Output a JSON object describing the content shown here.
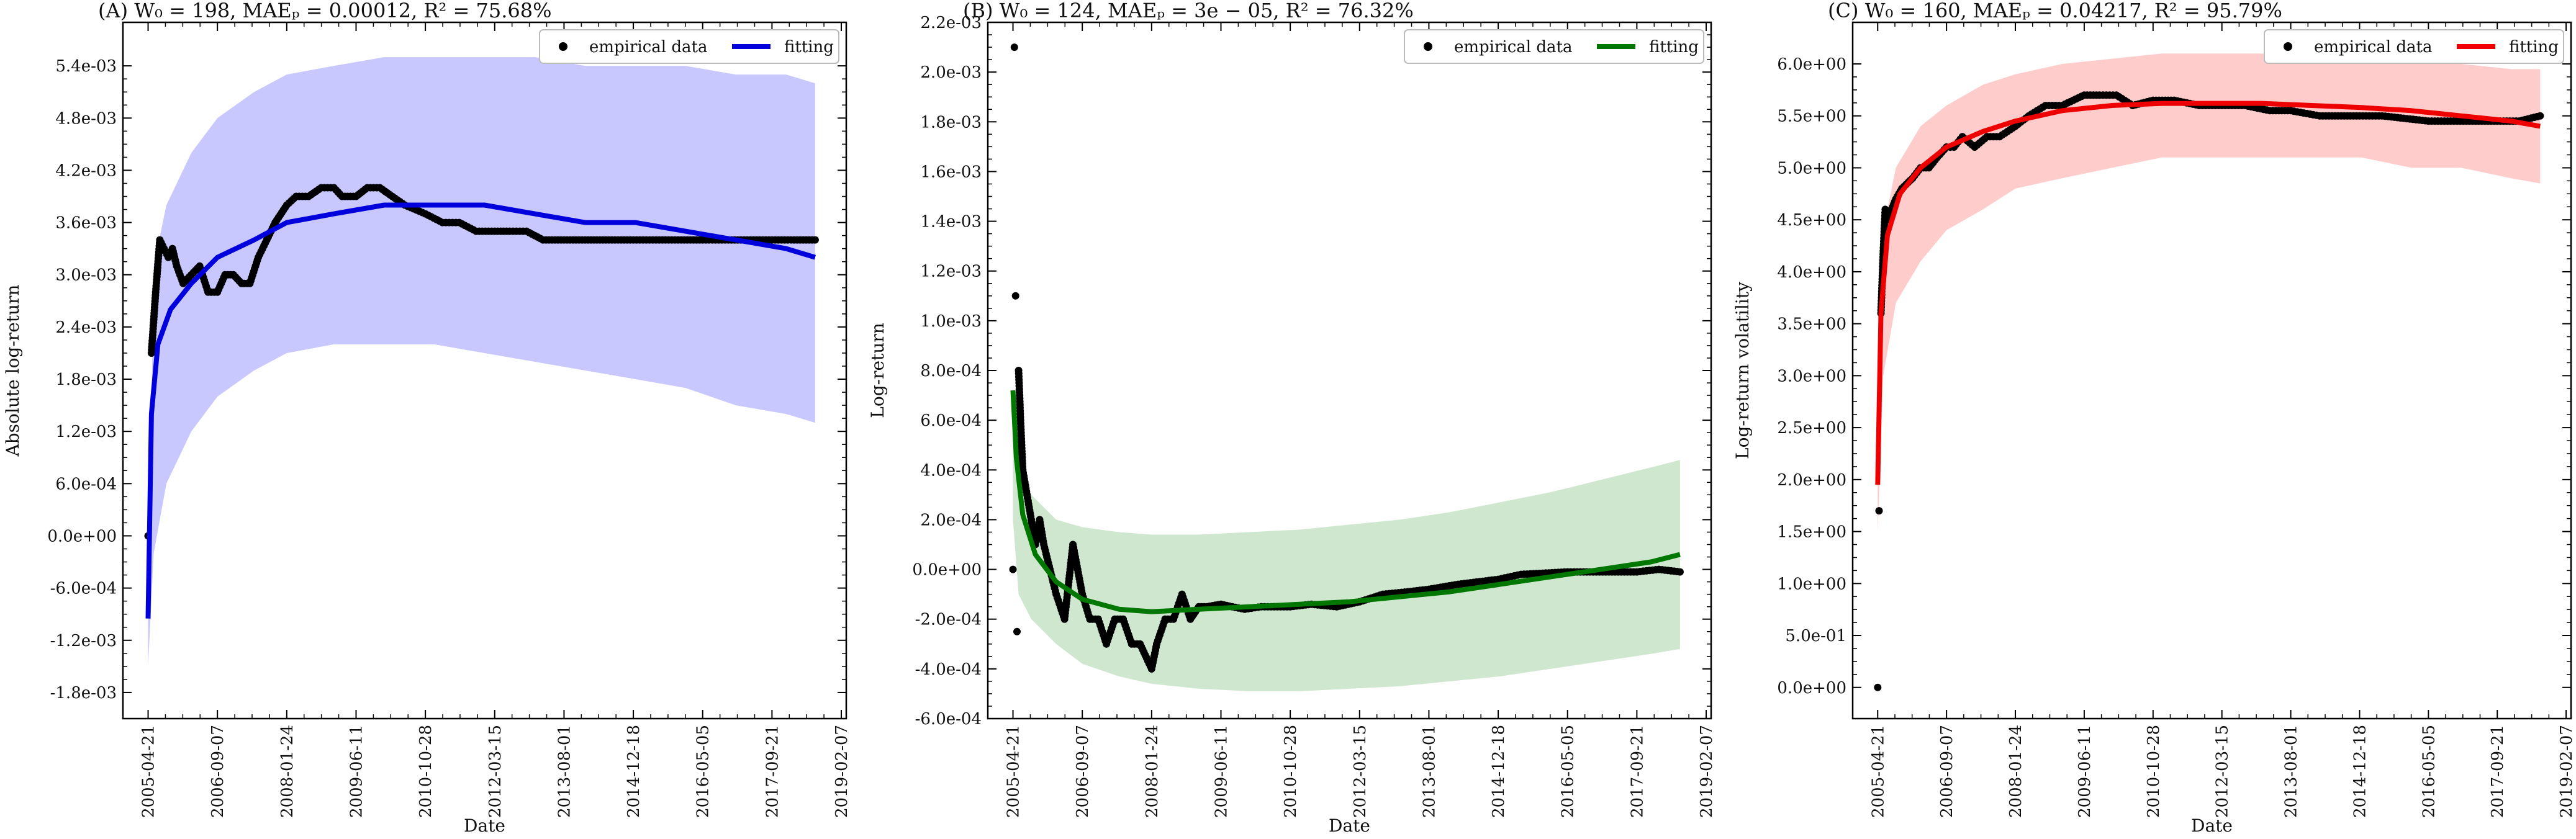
{
  "chart_data": [
    {
      "panel": "A",
      "type": "scatter",
      "title": "(A) W₀ = 198, MAEₚ = 0.00012, R² = 75.68%",
      "xlabel": "Date",
      "ylabel": "Absolute log-return",
      "x_range": [
        "2004-10-20",
        "2019-03-15"
      ],
      "ylim": [
        -0.0021,
        0.0059
      ],
      "xticks": [
        "2005-04-21",
        "2006-09-07",
        "2008-01-24",
        "2009-06-11",
        "2010-10-28",
        "2012-03-15",
        "2013-08-01",
        "2014-12-18",
        "2016-05-05",
        "2017-09-21",
        "2019-02-07"
      ],
      "yticks": [
        -0.0018,
        -0.0012,
        -0.0006,
        0.0,
        0.0006,
        0.0012,
        0.0018,
        0.0024,
        0.003,
        0.0036,
        0.0042,
        0.0048,
        0.0054
      ],
      "ytick_labels": [
        "-1.8e-03",
        "-1.2e-03",
        "-6.0e-04",
        "0.0e+00",
        "6.0e-04",
        "1.2e-03",
        "1.8e-03",
        "2.4e-03",
        "3.0e-03",
        "3.6e-03",
        "4.2e-03",
        "4.8e-03",
        "5.4e-03"
      ],
      "legend": [
        "empirical data",
        "fitting"
      ],
      "legend_position": "top-right",
      "fit_color": "#0000dd",
      "band_color": "#c8c8ff",
      "series": [
        {
          "name": "empirical data",
          "x": [
            "2005-04-21",
            "2005-05-15",
            "2005-06-15",
            "2005-07-15",
            "2005-08-15",
            "2005-09-15",
            "2005-10-15",
            "2005-11-15",
            "2006-01-01",
            "2006-03-01",
            "2006-05-01",
            "2006-07-01",
            "2006-09-07",
            "2006-11-01",
            "2007-01-01",
            "2007-03-01",
            "2007-05-01",
            "2007-07-01",
            "2007-09-01",
            "2007-11-01",
            "2008-01-24",
            "2008-04-01",
            "2008-07-01",
            "2008-10-01",
            "2009-01-01",
            "2009-03-01",
            "2009-06-11",
            "2009-09-01",
            "2009-12-01",
            "2010-03-01",
            "2010-06-01",
            "2010-10-28",
            "2011-03-01",
            "2011-07-01",
            "2011-11-01",
            "2012-03-15",
            "2012-07-01",
            "2012-11-01",
            "2013-03-01",
            "2013-08-01",
            "2014-01-01",
            "2014-06-01",
            "2014-12-18",
            "2015-06-01",
            "2015-12-01",
            "2016-05-05",
            "2016-12-01",
            "2017-06-01",
            "2017-09-21",
            "2018-03-01",
            "2018-08-01"
          ],
          "values": [
            0.0,
            0.0021,
            0.0028,
            0.0034,
            0.0033,
            0.0032,
            0.0033,
            0.0031,
            0.0029,
            0.003,
            0.0031,
            0.0028,
            0.0028,
            0.003,
            0.003,
            0.0029,
            0.0029,
            0.0032,
            0.0034,
            0.0036,
            0.0038,
            0.0039,
            0.0039,
            0.004,
            0.004,
            0.0039,
            0.0039,
            0.004,
            0.004,
            0.0039,
            0.0038,
            0.0037,
            0.0036,
            0.0036,
            0.0035,
            0.0035,
            0.0035,
            0.0035,
            0.0034,
            0.0034,
            0.0034,
            0.0034,
            0.0034,
            0.0034,
            0.0034,
            0.0034,
            0.0034,
            0.0034,
            0.0034,
            0.0034,
            0.0034
          ]
        },
        {
          "name": "fitting",
          "x": [
            "2005-04-21",
            "2005-05-15",
            "2005-07-01",
            "2005-10-01",
            "2006-03-01",
            "2006-09-07",
            "2007-06-01",
            "2008-01-24",
            "2009-01-01",
            "2010-01-01",
            "2011-01-01",
            "2012-01-01",
            "2013-01-01",
            "2014-01-01",
            "2015-01-01",
            "2016-01-01",
            "2017-01-01",
            "2018-01-01",
            "2018-08-01"
          ],
          "values": [
            -0.00095,
            0.0014,
            0.0022,
            0.0026,
            0.0029,
            0.0032,
            0.0034,
            0.0036,
            0.0037,
            0.0038,
            0.0038,
            0.0038,
            0.0037,
            0.0036,
            0.0036,
            0.0035,
            0.0034,
            0.0033,
            0.0032
          ]
        },
        {
          "name": "band_upper",
          "x": [
            "2005-04-21",
            "2005-06-01",
            "2005-09-01",
            "2006-03-01",
            "2006-09-07",
            "2007-06-01",
            "2008-01-24",
            "2009-01-01",
            "2010-01-01",
            "2011-01-01",
            "2012-01-01",
            "2013-01-01",
            "2014-01-01",
            "2015-01-01",
            "2016-01-01",
            "2017-01-01",
            "2018-01-01",
            "2018-08-01"
          ],
          "values": [
            -0.001,
            0.0031,
            0.0038,
            0.0044,
            0.0048,
            0.0051,
            0.0053,
            0.0054,
            0.0055,
            0.0055,
            0.0055,
            0.0055,
            0.0054,
            0.0054,
            0.0054,
            0.0053,
            0.0053,
            0.0052
          ]
        },
        {
          "name": "band_lower",
          "x": [
            "2005-04-21",
            "2005-06-01",
            "2005-09-01",
            "2006-03-01",
            "2006-09-07",
            "2007-06-01",
            "2008-01-24",
            "2009-01-01",
            "2010-01-01",
            "2011-01-01",
            "2012-01-01",
            "2013-01-01",
            "2014-01-01",
            "2015-01-01",
            "2016-01-01",
            "2017-01-01",
            "2018-01-01",
            "2018-08-01"
          ],
          "values": [
            -0.0015,
            -0.0002,
            0.0006,
            0.0012,
            0.0016,
            0.0019,
            0.0021,
            0.0022,
            0.0022,
            0.0022,
            0.0021,
            0.002,
            0.0019,
            0.0018,
            0.0017,
            0.0015,
            0.0014,
            0.0013
          ]
        }
      ]
    },
    {
      "panel": "B",
      "type": "scatter",
      "title": "(B) W₀ = 124, MAEₚ = 3e − 05, R² = 76.32%",
      "xlabel": "Date",
      "ylabel": "Log-return",
      "x_range": [
        "2004-10-20",
        "2019-03-15"
      ],
      "ylim": [
        -0.0006,
        0.0022
      ],
      "xticks": [
        "2005-04-21",
        "2006-09-07",
        "2008-01-24",
        "2009-06-11",
        "2010-10-28",
        "2012-03-15",
        "2013-08-01",
        "2014-12-18",
        "2016-05-05",
        "2017-09-21",
        "2019-02-07"
      ],
      "yticks": [
        -0.0006,
        -0.0004,
        -0.0002,
        0.0,
        0.0002,
        0.0004,
        0.0006,
        0.0008,
        0.001,
        0.0012,
        0.0014,
        0.0016,
        0.0018,
        0.002,
        0.0022
      ],
      "ytick_labels": [
        "-6.0e-04",
        "-4.0e-04",
        "-2.0e-04",
        "0.0e+00",
        "2.0e-04",
        "4.0e-04",
        "6.0e-04",
        "8.0e-04",
        "1.0e-03",
        "1.2e-03",
        "1.4e-03",
        "1.6e-03",
        "1.8e-03",
        "2.0e-03",
        "2.2e-03"
      ],
      "legend": [
        "empirical data",
        "fitting"
      ],
      "legend_position": "top-right",
      "fit_color": "#007700",
      "band_color": "#cfe6cf",
      "series": [
        {
          "name": "empirical data",
          "x": [
            "2005-04-21",
            "2005-05-01",
            "2005-05-10",
            "2005-05-20",
            "2005-06-01",
            "2005-06-15",
            "2005-07-01",
            "2005-08-01",
            "2005-09-01",
            "2005-10-01",
            "2005-11-01",
            "2005-12-01",
            "2006-01-15",
            "2006-03-01",
            "2006-05-01",
            "2006-07-01",
            "2006-09-07",
            "2006-11-01",
            "2007-01-01",
            "2007-03-01",
            "2007-05-01",
            "2007-07-01",
            "2007-09-01",
            "2007-11-01",
            "2008-01-24",
            "2008-03-01",
            "2008-05-01",
            "2008-07-01",
            "2008-09-01",
            "2008-11-01",
            "2009-01-01",
            "2009-03-01",
            "2009-06-11",
            "2009-09-01",
            "2009-12-01",
            "2010-04-01",
            "2010-10-28",
            "2011-04-01",
            "2011-10-01",
            "2012-03-15",
            "2012-09-01",
            "2013-03-01",
            "2013-08-01",
            "2014-03-01",
            "2014-12-18",
            "2015-06-01",
            "2016-05-05",
            "2016-12-01",
            "2017-09-21",
            "2018-03-01",
            "2018-08-01"
          ],
          "values": [
            0.0,
            0.0021,
            0.0011,
            -0.00025,
            0.0008,
            0.0006,
            0.0004,
            0.0003,
            0.0002,
            0.0001,
            0.0002,
            0.0001,
            0.0,
            -0.0001,
            -0.0002,
            0.0001,
            -0.0001,
            -0.0002,
            -0.0002,
            -0.0003,
            -0.0002,
            -0.0002,
            -0.0003,
            -0.0003,
            -0.0004,
            -0.0003,
            -0.0002,
            -0.0002,
            -0.0001,
            -0.0002,
            -0.00015,
            -0.00015,
            -0.00014,
            -0.00015,
            -0.00016,
            -0.00015,
            -0.00015,
            -0.00014,
            -0.00015,
            -0.00013,
            -0.0001,
            -9e-05,
            -8e-05,
            -6e-05,
            -4e-05,
            -2e-05,
            -1e-05,
            -1e-05,
            -1e-05,
            0.0,
            -1e-05
          ]
        },
        {
          "name": "fitting",
          "x": [
            "2005-04-21",
            "2005-05-15",
            "2005-07-01",
            "2005-10-01",
            "2006-03-01",
            "2006-09-07",
            "2007-06-01",
            "2008-01-24",
            "2009-01-01",
            "2010-01-01",
            "2011-01-01",
            "2012-01-01",
            "2013-01-01",
            "2014-01-01",
            "2015-01-01",
            "2016-01-01",
            "2017-01-01",
            "2018-01-01",
            "2018-08-01"
          ],
          "values": [
            0.00072,
            0.00045,
            0.00022,
            6e-05,
            -5e-05,
            -0.00012,
            -0.00016,
            -0.00017,
            -0.00016,
            -0.00015,
            -0.00014,
            -0.00013,
            -0.00011,
            -9e-05,
            -6e-05,
            -3e-05,
            0.0,
            3e-05,
            6e-05
          ]
        },
        {
          "name": "band_upper",
          "x": [
            "2005-04-21",
            "2005-06-01",
            "2005-09-01",
            "2006-03-01",
            "2006-09-07",
            "2007-06-01",
            "2008-01-24",
            "2009-01-01",
            "2010-01-01",
            "2011-01-01",
            "2012-01-01",
            "2013-01-01",
            "2014-01-01",
            "2015-01-01",
            "2016-01-01",
            "2017-01-01",
            "2018-01-01",
            "2018-08-01"
          ],
          "values": [
            0.0006,
            0.0004,
            0.0003,
            0.0002,
            0.00017,
            0.00015,
            0.00014,
            0.00014,
            0.00015,
            0.00016,
            0.00018,
            0.0002,
            0.00023,
            0.00027,
            0.00031,
            0.00036,
            0.00041,
            0.00044
          ]
        },
        {
          "name": "band_lower",
          "x": [
            "2005-04-21",
            "2005-06-01",
            "2005-09-01",
            "2006-03-01",
            "2006-09-07",
            "2007-06-01",
            "2008-01-24",
            "2009-01-01",
            "2010-01-01",
            "2011-01-01",
            "2012-01-01",
            "2013-01-01",
            "2014-01-01",
            "2015-01-01",
            "2016-01-01",
            "2017-01-01",
            "2018-01-01",
            "2018-08-01"
          ],
          "values": [
            0.0002,
            -0.0001,
            -0.0002,
            -0.0003,
            -0.00038,
            -0.00043,
            -0.00046,
            -0.00048,
            -0.00049,
            -0.00049,
            -0.00048,
            -0.00047,
            -0.00045,
            -0.00043,
            -0.0004,
            -0.00037,
            -0.00034,
            -0.00032
          ]
        }
      ]
    },
    {
      "panel": "C",
      "type": "scatter",
      "title": "(C) W₀ = 160, MAEₚ = 0.04217, R² = 95.79%",
      "xlabel": "Date",
      "ylabel": "Log-return volatility",
      "x_range": [
        "2004-10-20",
        "2019-03-15"
      ],
      "ylim": [
        -0.3,
        6.4
      ],
      "xticks": [
        "2005-04-21",
        "2006-09-07",
        "2008-01-24",
        "2009-06-11",
        "2010-10-28",
        "2012-03-15",
        "2013-08-01",
        "2014-12-18",
        "2016-05-05",
        "2017-09-21",
        "2019-02-07"
      ],
      "yticks": [
        0.0,
        0.5,
        1.0,
        1.5,
        2.0,
        2.5,
        3.0,
        3.5,
        4.0,
        4.5,
        5.0,
        5.5,
        6.0
      ],
      "ytick_labels": [
        "0.0e+00",
        "5.0e-01",
        "1.0e+00",
        "1.5e+00",
        "2.0e+00",
        "2.5e+00",
        "3.0e+00",
        "3.5e+00",
        "4.0e+00",
        "4.5e+00",
        "5.0e+00",
        "5.5e+00",
        "6.0e+00"
      ],
      "legend": [
        "empirical data",
        "fitting"
      ],
      "legend_position": "top-right",
      "fit_color": "#ee0000",
      "band_color": "#ffcccc",
      "series": [
        {
          "name": "empirical data",
          "x": [
            "2005-04-21",
            "2005-05-01",
            "2005-05-15",
            "2005-06-01",
            "2005-06-15",
            "2005-07-01",
            "2005-08-01",
            "2005-09-01",
            "2005-10-15",
            "2006-01-01",
            "2006-03-01",
            "2006-05-01",
            "2006-07-01",
            "2006-09-07",
            "2006-11-01",
            "2007-01-01",
            "2007-04-01",
            "2007-07-01",
            "2007-10-01",
            "2008-01-24",
            "2008-05-01",
            "2008-09-01",
            "2009-01-01",
            "2009-06-11",
            "2009-10-01",
            "2010-02-01",
            "2010-06-01",
            "2010-10-28",
            "2011-04-01",
            "2011-10-01",
            "2012-03-15",
            "2012-09-01",
            "2013-03-01",
            "2013-08-01",
            "2014-03-01",
            "2014-12-18",
            "2015-06-01",
            "2016-05-05",
            "2016-12-01",
            "2017-09-21",
            "2018-03-01",
            "2018-08-01"
          ],
          "values": [
            0.0,
            1.7,
            3.6,
            4.2,
            4.6,
            4.5,
            4.6,
            4.7,
            4.8,
            4.9,
            5.0,
            5.0,
            5.1,
            5.2,
            5.2,
            5.3,
            5.2,
            5.3,
            5.3,
            5.4,
            5.5,
            5.6,
            5.6,
            5.7,
            5.7,
            5.7,
            5.6,
            5.65,
            5.65,
            5.6,
            5.6,
            5.6,
            5.55,
            5.55,
            5.5,
            5.5,
            5.5,
            5.45,
            5.45,
            5.45,
            5.45,
            5.5
          ]
        },
        {
          "name": "fitting",
          "x": [
            "2005-04-21",
            "2005-05-15",
            "2005-07-01",
            "2005-10-01",
            "2006-03-01",
            "2006-09-07",
            "2007-06-01",
            "2008-01-24",
            "2009-01-01",
            "2010-01-01",
            "2011-01-01",
            "2012-01-01",
            "2013-01-01",
            "2014-01-01",
            "2015-01-01",
            "2016-01-01",
            "2017-01-01",
            "2018-01-01",
            "2018-08-01"
          ],
          "values": [
            1.95,
            3.6,
            4.35,
            4.75,
            5.0,
            5.2,
            5.35,
            5.45,
            5.55,
            5.6,
            5.62,
            5.62,
            5.62,
            5.6,
            5.58,
            5.55,
            5.5,
            5.45,
            5.4
          ]
        },
        {
          "name": "band_upper",
          "x": [
            "2005-04-21",
            "2005-06-01",
            "2005-09-01",
            "2006-03-01",
            "2006-09-07",
            "2007-06-01",
            "2008-01-24",
            "2009-01-01",
            "2010-01-01",
            "2011-01-01",
            "2012-01-01",
            "2013-01-01",
            "2014-01-01",
            "2015-01-01",
            "2016-01-01",
            "2017-01-01",
            "2018-01-01",
            "2018-08-01"
          ],
          "values": [
            2.4,
            4.4,
            5.0,
            5.4,
            5.6,
            5.8,
            5.9,
            6.0,
            6.05,
            6.1,
            6.1,
            6.1,
            6.05,
            6.05,
            6.0,
            6.0,
            5.95,
            5.95
          ]
        },
        {
          "name": "band_lower",
          "x": [
            "2005-04-21",
            "2005-06-01",
            "2005-09-01",
            "2006-03-01",
            "2006-09-07",
            "2007-06-01",
            "2008-01-24",
            "2009-01-01",
            "2010-01-01",
            "2011-01-01",
            "2012-01-01",
            "2013-01-01",
            "2014-01-01",
            "2015-01-01",
            "2016-01-01",
            "2017-01-01",
            "2018-01-01",
            "2018-08-01"
          ],
          "values": [
            1.5,
            3.0,
            3.7,
            4.1,
            4.4,
            4.6,
            4.8,
            4.9,
            5.0,
            5.1,
            5.1,
            5.1,
            5.1,
            5.1,
            5.0,
            5.0,
            4.9,
            4.85
          ]
        }
      ]
    }
  ]
}
